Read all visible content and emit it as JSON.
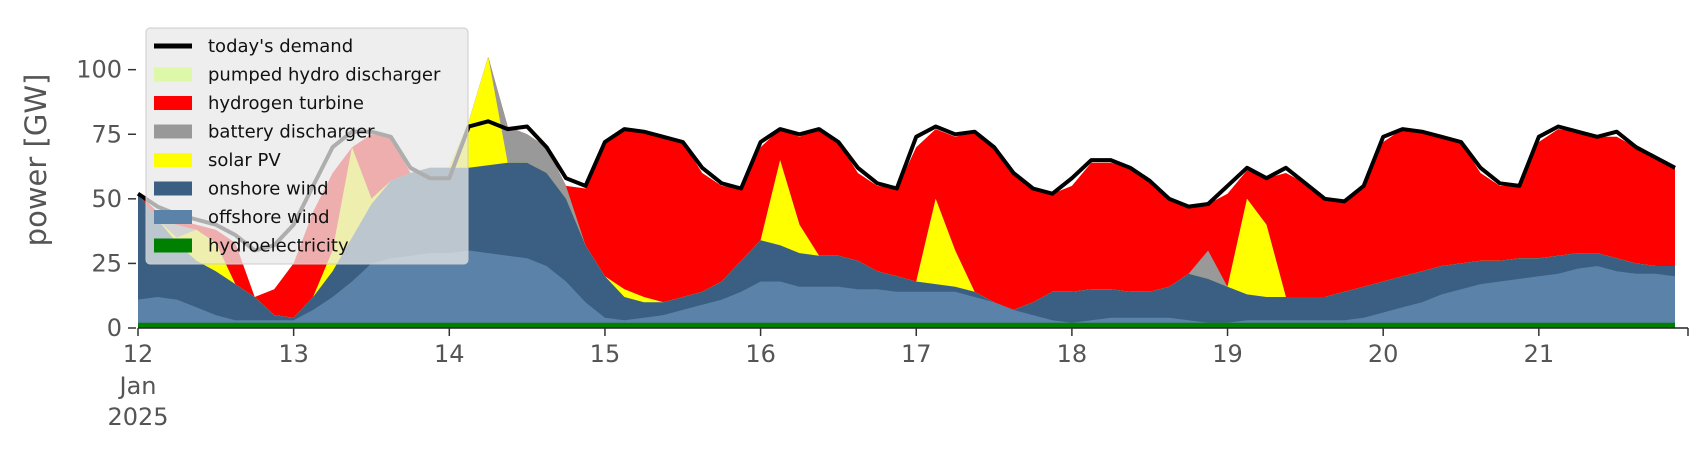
{
  "chart_data": {
    "type": "area",
    "title": "",
    "xlabel": "",
    "ylabel": "power [GW]",
    "ylim": [
      0,
      120
    ],
    "xlim": [
      "2025-01-12 00:00",
      "2025-01-21 23:00"
    ],
    "grid": false,
    "legend_position": "top-left",
    "yticks": [
      0,
      25,
      50,
      75,
      100
    ],
    "xticks": [
      {
        "date": "2025-01-12",
        "label": "12",
        "label2": "Jan",
        "label3": "2025"
      },
      {
        "date": "2025-01-13",
        "label": "13"
      },
      {
        "date": "2025-01-14",
        "label": "14"
      },
      {
        "date": "2025-01-15",
        "label": "15"
      },
      {
        "date": "2025-01-16",
        "label": "16"
      },
      {
        "date": "2025-01-17",
        "label": "17"
      },
      {
        "date": "2025-01-18",
        "label": "18"
      },
      {
        "date": "2025-01-19",
        "label": "19"
      },
      {
        "date": "2025-01-20",
        "label": "20"
      },
      {
        "date": "2025-01-21",
        "label": "21"
      }
    ],
    "x_start": "2025-01-12 00:00",
    "x_step": "3h",
    "x_end": "2025-01-21 23:00",
    "series": [
      {
        "name": "hydroelectricity",
        "color": "#008000",
        "values": [
          2,
          2,
          2,
          2,
          2,
          2,
          2,
          2,
          2,
          2,
          2,
          2,
          2,
          2,
          2,
          2,
          2,
          2,
          2,
          2,
          2,
          2,
          2,
          2,
          2,
          2,
          2,
          2,
          2,
          2,
          2,
          2,
          2,
          2,
          2,
          2,
          2,
          2,
          2,
          2,
          2,
          2,
          2,
          2,
          2,
          2,
          2,
          2,
          2,
          2,
          2,
          2,
          2,
          2,
          2,
          2,
          2,
          2,
          2,
          2,
          2,
          2,
          2,
          2,
          2,
          2,
          2,
          2,
          2,
          2,
          2,
          2,
          2,
          2,
          2,
          2,
          2,
          2,
          2,
          2
        ]
      },
      {
        "name": "offshore wind",
        "color": "#5b82a8",
        "values": [
          11,
          12,
          11,
          8,
          5,
          3,
          3,
          3,
          3,
          7,
          12,
          18,
          25,
          27,
          28,
          29,
          29,
          30,
          29,
          28,
          27,
          24,
          18,
          10,
          4,
          3,
          4,
          5,
          7,
          9,
          11,
          14,
          18,
          18,
          16,
          16,
          16,
          15,
          15,
          14,
          14,
          14,
          14,
          12,
          10,
          7,
          5,
          3,
          2,
          3,
          4,
          4,
          4,
          4,
          3,
          2,
          2,
          3,
          3,
          3,
          3,
          3,
          3,
          4,
          6,
          8,
          10,
          13,
          15,
          17,
          18,
          19,
          20,
          21,
          23,
          24,
          22,
          21,
          21,
          20
        ]
      },
      {
        "name": "onshore wind",
        "color": "#3a5f82",
        "values": [
          52,
          42,
          33,
          26,
          22,
          17,
          12,
          5,
          4,
          12,
          22,
          35,
          48,
          57,
          60,
          62,
          62,
          62,
          63,
          64,
          64,
          60,
          50,
          32,
          20,
          12,
          10,
          10,
          12,
          14,
          18,
          26,
          34,
          32,
          29,
          28,
          28,
          26,
          22,
          20,
          18,
          17,
          16,
          14,
          10,
          7,
          10,
          14,
          14,
          15,
          15,
          14,
          14,
          16,
          21,
          19,
          16,
          13,
          12,
          12,
          12,
          12,
          14,
          16,
          18,
          20,
          22,
          24,
          25,
          26,
          26,
          27,
          27,
          28,
          29,
          29,
          27,
          25,
          24,
          24
        ]
      },
      {
        "name": "solar PV",
        "color": "#ffff00",
        "values": [
          52,
          42,
          35,
          38,
          33,
          17,
          12,
          5,
          4,
          12,
          30,
          70,
          50,
          57,
          60,
          62,
          62,
          80,
          105,
          64,
          64,
          60,
          50,
          32,
          20,
          15,
          12,
          10,
          12,
          14,
          18,
          26,
          34,
          65,
          40,
          28,
          28,
          26,
          22,
          20,
          18,
          50,
          30,
          14,
          10,
          7,
          10,
          14,
          14,
          15,
          15,
          14,
          14,
          16,
          21,
          19,
          16,
          50,
          40,
          12,
          12,
          12,
          14,
          16,
          18,
          20,
          22,
          24,
          25,
          26,
          26,
          27,
          27,
          28,
          29,
          29,
          27,
          25,
          24,
          24
        ]
      },
      {
        "name": "battery discharger",
        "color": "#999999",
        "values": [
          52,
          42,
          40,
          38,
          33,
          17,
          12,
          5,
          4,
          12,
          30,
          70,
          50,
          57,
          60,
          62,
          62,
          80,
          105,
          78,
          75,
          70,
          55,
          32,
          20,
          15,
          12,
          10,
          12,
          14,
          18,
          26,
          34,
          65,
          40,
          28,
          28,
          26,
          22,
          20,
          18,
          50,
          30,
          14,
          10,
          7,
          10,
          14,
          14,
          15,
          15,
          14,
          14,
          16,
          21,
          30,
          16,
          50,
          40,
          12,
          12,
          12,
          14,
          16,
          18,
          20,
          22,
          24,
          25,
          26,
          26,
          27,
          27,
          28,
          29,
          29,
          27,
          25,
          24,
          24
        ]
      },
      {
        "name": "hydrogen turbine",
        "color": "#ff0000",
        "values": [
          52,
          45,
          42,
          40,
          38,
          33,
          12,
          15,
          25,
          45,
          60,
          70,
          75,
          74,
          60,
          62,
          62,
          80,
          105,
          78,
          75,
          70,
          55,
          54,
          72,
          77,
          76,
          74,
          72,
          60,
          55,
          54,
          70,
          77,
          74,
          77,
          72,
          60,
          55,
          54,
          70,
          77,
          74,
          76,
          70,
          60,
          54,
          52,
          55,
          64,
          64,
          62,
          57,
          50,
          47,
          48,
          52,
          61,
          58,
          60,
          56,
          50,
          49,
          54,
          72,
          77,
          76,
          74,
          72,
          60,
          55,
          55,
          72,
          77,
          76,
          74,
          74,
          70,
          66,
          62
        ]
      },
      {
        "name": "pumped hydro discharger",
        "color": "#dcf8a8",
        "values": [
          52,
          45,
          42,
          40,
          38,
          33,
          12,
          15,
          25,
          45,
          60,
          70,
          75,
          74,
          60,
          62,
          62,
          80,
          105,
          78,
          75,
          70,
          55,
          54,
          72,
          77,
          76,
          74,
          72,
          60,
          55,
          54,
          70,
          77,
          74,
          77,
          72,
          60,
          55,
          54,
          70,
          77,
          74,
          76,
          70,
          60,
          54,
          52,
          55,
          64,
          64,
          62,
          57,
          50,
          47,
          48,
          52,
          61,
          58,
          60,
          56,
          50,
          49,
          54,
          72,
          77,
          76,
          74,
          72,
          60,
          55,
          55,
          72,
          77,
          76,
          74,
          74,
          70,
          66,
          62
        ]
      },
      {
        "name": "today's demand",
        "color": "#000000",
        "values": [
          52,
          47,
          44,
          42,
          40,
          36,
          30,
          32,
          40,
          55,
          70,
          76,
          76,
          74,
          62,
          58,
          58,
          78,
          80,
          77,
          78,
          70,
          58,
          55,
          72,
          77,
          76,
          74,
          72,
          62,
          56,
          54,
          72,
          77,
          75,
          77,
          72,
          62,
          56,
          54,
          74,
          78,
          75,
          76,
          70,
          60,
          54,
          52,
          58,
          65,
          65,
          62,
          57,
          50,
          47,
          48,
          55,
          62,
          58,
          62,
          56,
          50,
          49,
          55,
          74,
          77,
          76,
          74,
          72,
          62,
          56,
          55,
          74,
          78,
          76,
          74,
          76,
          70,
          66,
          62
        ]
      }
    ]
  }
}
